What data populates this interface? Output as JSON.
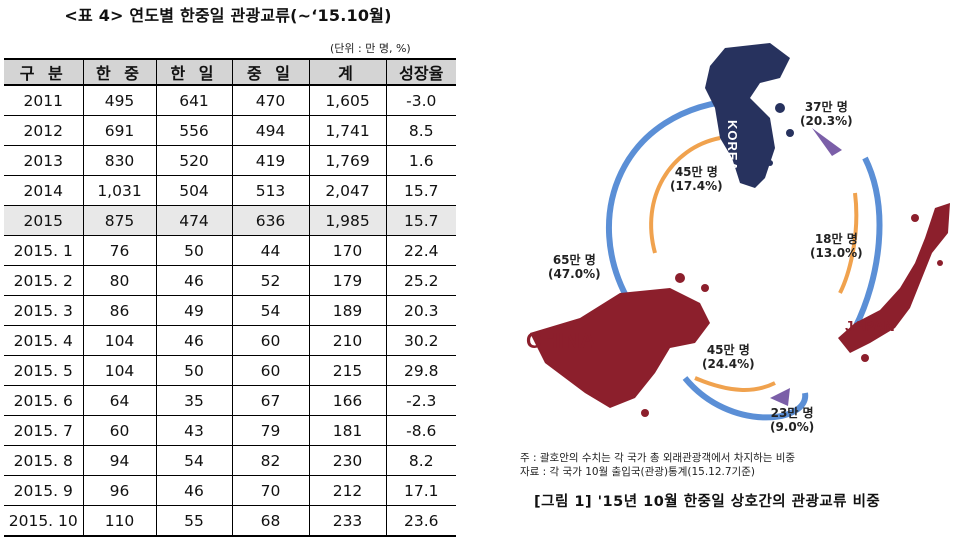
{
  "table": {
    "title": "<표 4> 연도별 한중일 관광교류(~‘15.10월)",
    "unit": "(단위 : 만 명, %)",
    "headers": [
      "구 분",
      "한 중",
      "한 일",
      "중 일",
      "계",
      "성장율"
    ],
    "rows": [
      [
        "2011",
        "495",
        "641",
        "470",
        "1,605",
        "-3.0"
      ],
      [
        "2012",
        "691",
        "556",
        "494",
        "1,741",
        "8.5"
      ],
      [
        "2013",
        "830",
        "520",
        "419",
        "1,769",
        "1.6"
      ],
      [
        "2014",
        "1,031",
        "504",
        "513",
        "2,047",
        "15.7"
      ],
      [
        "2015",
        "875",
        "474",
        "636",
        "1,985",
        "15.7"
      ],
      [
        "2015. 1",
        "76",
        "50",
        "44",
        "170",
        "22.4"
      ],
      [
        "2015. 2",
        "80",
        "46",
        "52",
        "179",
        "25.2"
      ],
      [
        "2015. 3",
        "86",
        "49",
        "54",
        "189",
        "20.3"
      ],
      [
        "2015. 4",
        "104",
        "46",
        "60",
        "210",
        "30.2"
      ],
      [
        "2015. 5",
        "104",
        "50",
        "60",
        "215",
        "29.8"
      ],
      [
        "2015. 6",
        "64",
        "35",
        "67",
        "166",
        "-2.3"
      ],
      [
        "2015. 7",
        "60",
        "43",
        "79",
        "181",
        "-8.6"
      ],
      [
        "2015. 8",
        "94",
        "54",
        "82",
        "230",
        "8.2"
      ],
      [
        "2015. 9",
        "96",
        "46",
        "70",
        "212",
        "17.1"
      ],
      [
        "2015. 10",
        "110",
        "55",
        "68",
        "233",
        "23.6"
      ]
    ],
    "highlight_row": "2015"
  },
  "figure": {
    "flows": {
      "korea_to_japan": {
        "value": "37만 명",
        "pct": "(20.3%)"
      },
      "japan_to_korea": {
        "value": "18만 명",
        "pct": "(13.0%)"
      },
      "korea_to_china": {
        "value": "45만 명",
        "pct": "(17.4%)"
      },
      "china_to_korea": {
        "value": "65만 명",
        "pct": "(47.0%)"
      },
      "china_to_japan": {
        "value": "45만 명",
        "pct": "(24.4%)"
      },
      "japan_to_china": {
        "value": "23만 명",
        "pct": "(9.0%)"
      }
    },
    "countries": {
      "korea": "KOREA",
      "japan": "JAPAN",
      "china": "CHINA"
    },
    "note": "주 : 괄호안의 수치는 각 국가 총 외래관광객에서 차지하는 비중",
    "source": "자료 : 각 국가 10월 출입국(관광)통계(15.12.7기준)",
    "caption": "[그림 1] '15년 10월 한중일 상호간의 관광교류 비중"
  },
  "colors": {
    "blue_arrow": "#5b8fd6",
    "orange_arrow": "#f0a24e",
    "purple_arrow": "#7b5fa8",
    "map_red": "#8c1f2c",
    "map_navy": "#27325e",
    "header_gray": "#d4d4d4"
  }
}
